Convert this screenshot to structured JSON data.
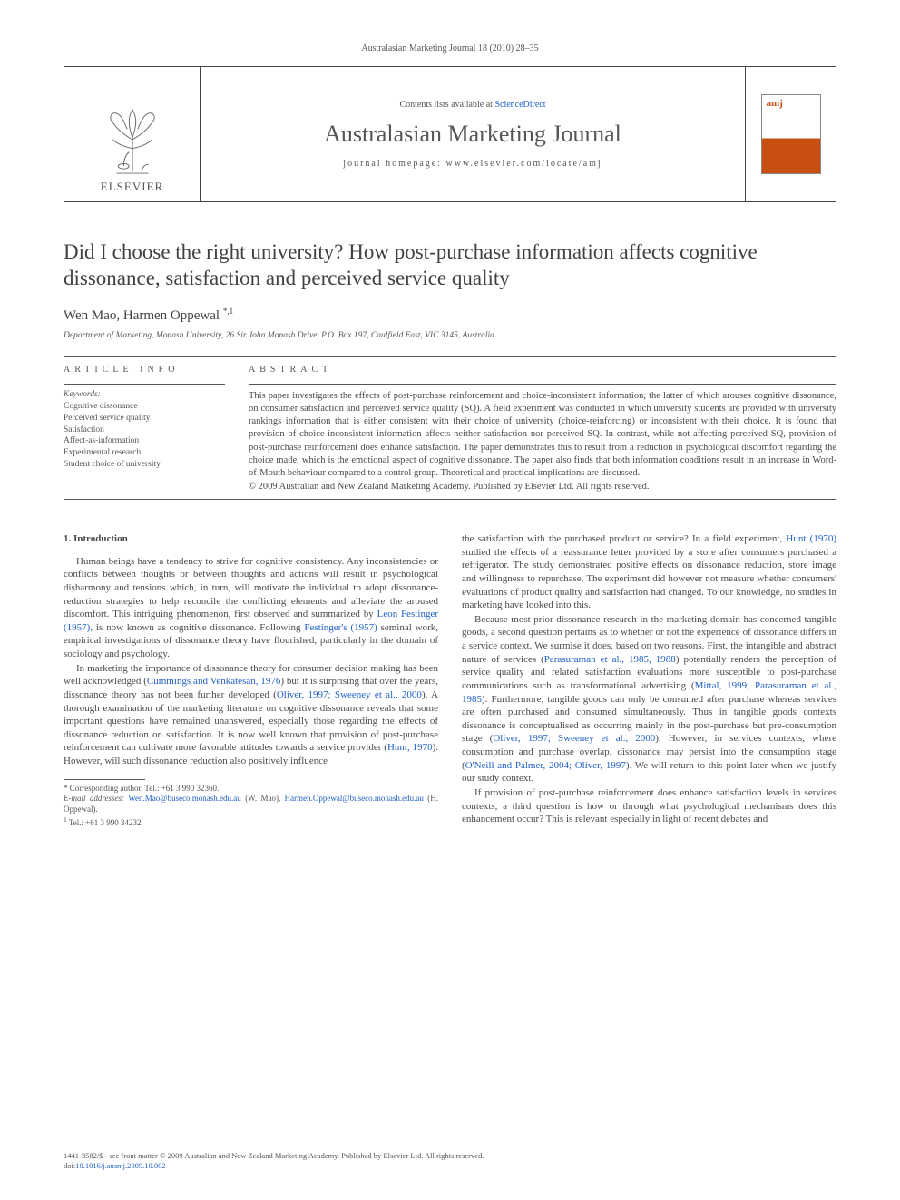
{
  "running_head": "Australasian Marketing Journal 18 (2010) 28–35",
  "masthead": {
    "publisher": "ELSEVIER",
    "contents_prefix": "Contents lists available at ",
    "contents_link": "ScienceDirect",
    "journal": "Australasian Marketing Journal",
    "homepage": "journal homepage: www.elsevier.com/locate/amj",
    "cover_label": "amj"
  },
  "title": "Did I choose the right university? How post-purchase information affects cognitive dissonance, satisfaction and perceived service quality",
  "authors": "Wen Mao, Harmen Oppewal",
  "author_marks": "*,1",
  "affiliation": "Department of Marketing, Monash University, 26 Sir John Monash Drive, P.O. Box 197, Caulfield East, VIC 3145, Australia",
  "info_head": "ARTICLE INFO",
  "abs_head": "ABSTRACT",
  "keywords_head": "Keywords:",
  "keywords": "Cognitive dissonance\nPerceived service quality\nSatisfaction\nAffect-as-information\nExperimental research\nStudent choice of university",
  "abstract": "This paper investigates the effects of post-purchase reinforcement and choice-inconsistent information, the latter of which arouses cognitive dissonance, on consumer satisfaction and perceived service quality (SQ). A field experiment was conducted in which university students are provided with university rankings information that is either consistent with their choice of university (choice-reinforcing) or inconsistent with their choice. It is found that provision of choice-inconsistent information affects neither satisfaction nor perceived SQ. In contrast, while not affecting perceived SQ, provision of post-purchase reinforcement does enhance satisfaction. The paper demonstrates this to result from a reduction in psychological discomfort regarding the choice made, which is the emotional aspect of cognitive dissonance. The paper also finds that both information conditions result in an increase in Word-of-Mouth behaviour compared to a control group. Theoretical and practical implications are discussed.",
  "abstract_copyright": "© 2009 Australian and New Zealand Marketing Academy. Published by Elsevier Ltd. All rights reserved.",
  "section_heading": "1. Introduction",
  "paras": {
    "p1a": "Human beings have a tendency to strive for cognitive consistency. Any inconsistencies or conflicts between thoughts or between thoughts and actions will result in psychological disharmony and tensions which, in turn, will motivate the individual to adopt dissonance-reduction strategies to help reconcile the conflicting elements and alleviate the aroused discomfort. This intriguing phenomenon, first observed and summarized by ",
    "p1link1": "Leon Festinger (1957)",
    "p1b": ", is now known as cognitive dissonance. Following ",
    "p1link2": "Festinger's (1957)",
    "p1c": " seminal work, empirical investigations of dissonance theory have flourished, particularly in the domain of sociology and psychology.",
    "p2a": "In marketing the importance of dissonance theory for consumer decision making has been well acknowledged (",
    "p2link1": "Cummings and Venkatesan, 1976",
    "p2b": ") but it is surprising that over the years, dissonance theory has not been further developed (",
    "p2link2": "Oliver, 1997; Sweeney et al., 2000",
    "p2c": "). A thorough examination of the marketing literature on cognitive dissonance reveals that some important questions have remained unanswered, especially those regarding the effects of dissonance reduction on satisfaction. It is now well known that provision of post-purchase reinforcement can cultivate more favorable attitudes towards a service provider (",
    "p2link3": "Hunt, 1970",
    "p2d": "). However, will such dissonance reduction also positively influence",
    "p3a": "the satisfaction with the purchased product or service? In a field experiment, ",
    "p3link1": "Hunt (1970)",
    "p3b": " studied the effects of a reassurance letter provided by a store after consumers purchased a refrigerator. The study demonstrated positive effects on dissonance reduction, store image and willingness to repurchase. The experiment did however not measure whether consumers' evaluations of product quality and satisfaction had changed. To our knowledge, no studies in marketing have looked into this.",
    "p4a": "Because most prior dissonance research in the marketing domain has concerned tangible goods, a second question pertains as to whether or not the experience of dissonance differs in a service context. We surmise it does, based on two reasons. First, the intangible and abstract nature of services (",
    "p4link1": "Parasuraman et al., 1985, 1988",
    "p4b": ") potentially renders the perception of service quality and related satisfaction evaluations more susceptible to post-purchase communications such as transformational advertising (",
    "p4link2": "Mittal, 1999; Parasuraman et al., 1985",
    "p4c": "). Furthermore, tangible goods can only be consumed after purchase whereas services are often purchased and consumed simultaneously. Thus in tangible goods contexts dissonance is conceptualised as occurring mainly in the post-purchase but pre-consumption stage (",
    "p4link3": "Oliver, 1997; Sweeney et al., 2000",
    "p4d": "). However, in services contexts, where consumption and purchase overlap, dissonance may persist into the consumption stage (",
    "p4link4": "O'Neill and Palmer, 2004; Oliver, 1997",
    "p4e": "). We will return to this point later when we justify our study context.",
    "p5": "If provision of post-purchase reinforcement does enhance satisfaction levels in services contexts, a third question is how or through what psychological mechanisms does this enhancement occur? This is relevant especially in light of recent debates and"
  },
  "footnotes": {
    "corr": "* Corresponding author. Tel.: +61 3 990 32360.",
    "email_label": "E-mail addresses:",
    "email1": "Wen.Mao@buseco.monash.edu.au",
    "email1_owner": " (W. Mao), ",
    "email2": "Harmen.Oppewal@buseco.monash.edu.au",
    "email2_owner": " (H. Oppewal).",
    "tel1": "Tel.: +61 3 990 34232.",
    "tel1_mark": "1"
  },
  "footer": {
    "line1": "1441-3582/$ - see front matter © 2009 Australian and New Zealand Marketing Academy. Published by Elsevier Ltd. All rights reserved.",
    "doi_label": "doi:",
    "doi": "10.1016/j.ausmj.2009.10.002"
  },
  "colors": {
    "link": "#2061c4",
    "text": "#4a4a4a",
    "rule": "#555555",
    "cover_accent": "#c84f10"
  }
}
